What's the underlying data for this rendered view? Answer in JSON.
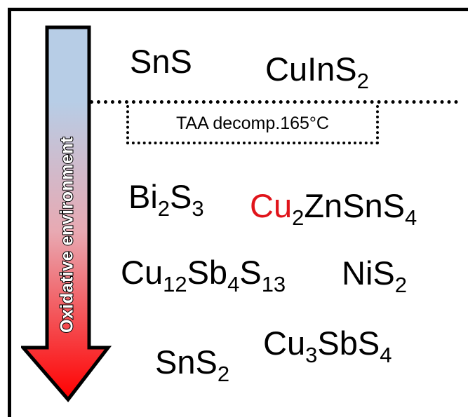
{
  "arrow": {
    "label": "Oxidative environment",
    "gradient_top_color": "#b7cde6",
    "gradient_bottom_color": "#ff0000"
  },
  "divider": {
    "label": "TAA decomp.165°C"
  },
  "compounds": {
    "sns": "SnS",
    "cuins2": {
      "a": "CuInS",
      "s1": "2"
    },
    "bi2s3": {
      "a": "Bi",
      "s1": "2",
      "b": "S",
      "s2": "3"
    },
    "czts": {
      "a": "Cu",
      "s1": "2",
      "b": "ZnSnS",
      "s2": "4"
    },
    "cu12sb4s13": {
      "a": "Cu",
      "s1": "12",
      "b": "Sb",
      "s2": "4",
      "c": "S",
      "s3": "13"
    },
    "nis2": {
      "a": "NiS",
      "s1": "2"
    },
    "cu3sbs4": {
      "a": "Cu",
      "s1": "3",
      "b": "SbS",
      "s2": "4"
    },
    "sns2": {
      "a": "SnS",
      "s1": "2"
    }
  },
  "colors": {
    "highlight": "#e0141b"
  }
}
